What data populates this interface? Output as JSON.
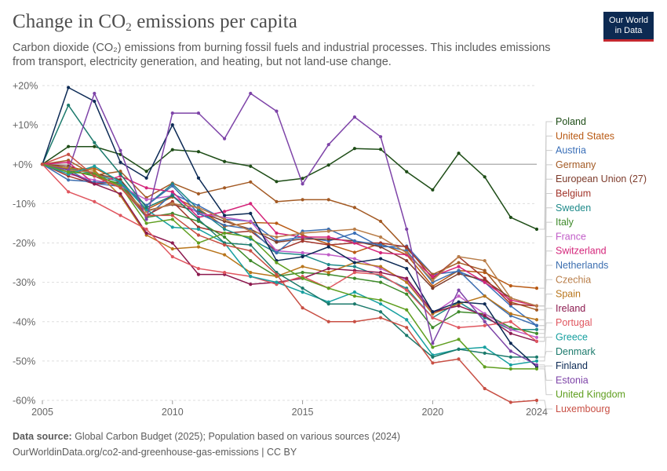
{
  "header": {
    "title_main": "Change in CO",
    "title_sub": "2",
    "title_tail": " emissions per capita",
    "subtitle": "Carbon dioxide (CO₂) emissions from burning fossil fuels and industrial processes. This includes emissions from transport, electricity generation, and heating, but not land-use change."
  },
  "logo": {
    "line1": "Our World",
    "line2": "in Data",
    "bg_color": "#0d2a52",
    "accent_color": "#c4282f"
  },
  "footer": {
    "source_label": "Data source:",
    "source_text": " Global Carbon Budget (2025); Population based on various sources (2024)",
    "url_text": "OurWorldinData.org/co2-and-greenhouse-gas-emissions | CC BY"
  },
  "chart_data": {
    "type": "line",
    "title": "Change in CO₂ emissions per capita",
    "xlabel": "",
    "ylabel": "",
    "xlim": [
      2005,
      2024
    ],
    "ylim": [
      -60,
      20
    ],
    "yticks": [
      20,
      10,
      0,
      -10,
      -20,
      -30,
      -40,
      -50,
      -60
    ],
    "ytick_labels": [
      "+20%",
      "+10%",
      "+0%",
      "-10%",
      "-20%",
      "-30%",
      "-40%",
      "-50%",
      "-60%"
    ],
    "xticks": [
      2005,
      2010,
      2015,
      2020,
      2024
    ],
    "xtick_labels": [
      "2005",
      "2010",
      "2015",
      "2020",
      "2024"
    ],
    "grid": true,
    "legend": "right",
    "x": [
      2005,
      2006,
      2007,
      2008,
      2009,
      2010,
      2011,
      2012,
      2013,
      2014,
      2015,
      2016,
      2017,
      2018,
      2019,
      2020,
      2021,
      2022,
      2023,
      2024
    ],
    "series": [
      {
        "name": "Poland",
        "color": "#1e4d17",
        "values": [
          0,
          4.5,
          4.5,
          2.5,
          -1.8,
          3.7,
          3.2,
          0.7,
          -0.5,
          -4.4,
          -3.6,
          -0.2,
          4.0,
          3.8,
          -1.9,
          -6.5,
          2.8,
          -3.2,
          -13.5,
          -16.5
        ]
      },
      {
        "name": "United States",
        "color": "#b95a14",
        "values": [
          0,
          -1.3,
          -1.0,
          -4.3,
          -11.5,
          -8.3,
          -11.3,
          -15.8,
          -14.8,
          -15.0,
          -18.0,
          -20.3,
          -22.4,
          -20.1,
          -23.0,
          -31.0,
          -27.0,
          -27.5,
          -30.9,
          -31.5
        ]
      },
      {
        "name": "Austria",
        "color": "#3a6fb8",
        "values": [
          0,
          -1.5,
          -4.9,
          -5.6,
          -13.5,
          -7.5,
          -10.5,
          -14.0,
          -14.5,
          -19.5,
          -18.5,
          -19.5,
          -17.5,
          -21.0,
          -20.8,
          -28.0,
          -27.2,
          -30.0,
          -36.0,
          -41.0
        ]
      },
      {
        "name": "Germany",
        "color": "#a35a24",
        "values": [
          0,
          1.0,
          -2.8,
          -1.8,
          -8.5,
          -4.8,
          -7.5,
          -6.0,
          -4.5,
          -9.5,
          -9.0,
          -9.0,
          -11.0,
          -14.5,
          -21.5,
          -28.0,
          -25.0,
          -27.0,
          -35.0,
          -37.0
        ]
      },
      {
        "name": "European Union (27)",
        "color": "#7d3b2b",
        "values": [
          0,
          -0.5,
          -2.3,
          -3.9,
          -11.8,
          -10.2,
          -12.0,
          -14.5,
          -16.5,
          -19.8,
          -19.0,
          -19.0,
          -19.5,
          -21.0,
          -24.5,
          -31.5,
          -27.8,
          -29.5,
          -34.0,
          -36.0
        ]
      },
      {
        "name": "Belgium",
        "color": "#a2352b",
        "values": [
          0,
          -3.0,
          -5.0,
          -4.5,
          -13.0,
          -9.5,
          -16.0,
          -17.5,
          -17.0,
          -22.0,
          -19.5,
          -20.5,
          -20.0,
          -20.0,
          -21.0,
          -29.0,
          -23.5,
          -29.0,
          -35.5,
          -36.0
        ]
      },
      {
        "name": "Sweden",
        "color": "#1e8a8a",
        "values": [
          0,
          -1.0,
          -2.5,
          -4.5,
          -10.5,
          -5.0,
          -11.5,
          -16.5,
          -19.0,
          -22.5,
          -23.0,
          -25.5,
          -26.0,
          -28.5,
          -31.5,
          -39.0,
          -35.0,
          -39.0,
          -42.0,
          -42.0
        ]
      },
      {
        "name": "Italy",
        "color": "#3e8a2a",
        "values": [
          0,
          -1.5,
          -3.0,
          -5.0,
          -13.5,
          -12.5,
          -14.5,
          -18.5,
          -24.5,
          -28.5,
          -27.5,
          -28.0,
          -29.0,
          -30.0,
          -33.0,
          -41.5,
          -37.5,
          -38.0,
          -41.5,
          -43.0
        ]
      },
      {
        "name": "France",
        "color": "#c15dc8",
        "values": [
          0,
          -2.5,
          -4.0,
          -5.5,
          -9.0,
          -8.0,
          -12.5,
          -13.5,
          -14.5,
          -22.0,
          -22.5,
          -23.0,
          -24.0,
          -26.5,
          -29.5,
          -38.0,
          -33.5,
          -38.0,
          -42.0,
          -44.0
        ]
      },
      {
        "name": "Switzerland",
        "color": "#d4257a",
        "values": [
          0,
          0.5,
          -5.0,
          -3.0,
          -6.0,
          -7.0,
          -13.5,
          -12.0,
          -10.0,
          -17.5,
          -18.5,
          -18.5,
          -20.0,
          -22.5,
          -23.0,
          -28.5,
          -26.0,
          -30.0,
          -34.5,
          -36.0
        ]
      },
      {
        "name": "Netherlands",
        "color": "#3d6fb0",
        "values": [
          0,
          -4.0,
          -4.5,
          -5.0,
          -10.5,
          -5.5,
          -12.5,
          -15.5,
          -16.5,
          -22.5,
          -17.0,
          -16.5,
          -19.5,
          -20.5,
          -22.0,
          -30.0,
          -27.0,
          -33.5,
          -38.5,
          -41.0
        ]
      },
      {
        "name": "Czechia",
        "color": "#b97e49",
        "values": [
          0,
          -1.5,
          -2.0,
          -6.0,
          -12.0,
          -10.0,
          -11.0,
          -14.0,
          -17.0,
          -18.5,
          -17.5,
          -17.0,
          -16.5,
          -18.5,
          -22.5,
          -29.5,
          -23.5,
          -24.5,
          -34.0,
          -36.0
        ]
      },
      {
        "name": "Spain",
        "color": "#b8751b",
        "values": [
          0,
          -1.0,
          -1.5,
          -8.0,
          -18.0,
          -21.5,
          -21.0,
          -23.0,
          -27.5,
          -28.5,
          -26.0,
          -27.5,
          -25.0,
          -26.0,
          -30.0,
          -38.0,
          -35.5,
          -33.5,
          -38.0,
          -39.5
        ]
      },
      {
        "name": "Ireland",
        "color": "#8c1a4f",
        "values": [
          0,
          -2.0,
          -5.0,
          -7.5,
          -17.5,
          -20.0,
          -28.0,
          -28.0,
          -30.5,
          -30.0,
          -29.0,
          -26.5,
          -27.0,
          -27.5,
          -29.0,
          -37.5,
          -36.0,
          -38.5,
          -43.0,
          -45.0
        ]
      },
      {
        "name": "Portugal",
        "color": "#e0565f",
        "values": [
          0,
          -7.0,
          -9.5,
          -13.0,
          -16.5,
          -23.5,
          -26.5,
          -27.5,
          -28.5,
          -30.5,
          -28.5,
          -31.5,
          -27.5,
          -28.0,
          -32.0,
          -39.0,
          -41.5,
          -41.0,
          -40.0,
          -45.0
        ]
      },
      {
        "name": "Greece",
        "color": "#18a0a0",
        "values": [
          0,
          -2.5,
          -0.5,
          -4.5,
          -11.5,
          -16.0,
          -16.5,
          -20.0,
          -28.5,
          -30.0,
          -32.5,
          -35.0,
          -32.5,
          -35.5,
          -39.5,
          -48.5,
          -47.0,
          -46.5,
          -51.0,
          -50.0
        ]
      },
      {
        "name": "Denmark",
        "color": "#1c7a6c",
        "values": [
          0,
          15.0,
          5.5,
          -2.5,
          -11.0,
          -8.0,
          -14.0,
          -20.0,
          -20.5,
          -27.5,
          -31.5,
          -35.5,
          -35.5,
          -37.5,
          -43.5,
          -49.0,
          -47.0,
          -48.0,
          -49.0,
          -49.0
        ]
      },
      {
        "name": "Finland",
        "color": "#0c2a55",
        "values": [
          0,
          19.5,
          16.0,
          0.5,
          -3.5,
          10.0,
          -3.5,
          -13.0,
          -12.5,
          -24.5,
          -23.5,
          -21.0,
          -25.0,
          -24.0,
          -26.5,
          -37.5,
          -35.0,
          -35.5,
          -45.5,
          -51.5
        ]
      },
      {
        "name": "Estonia",
        "color": "#7e44a8",
        "values": [
          0,
          -1.5,
          18.0,
          3.5,
          -14.0,
          13.0,
          13.0,
          6.5,
          18.0,
          13.5,
          -5.0,
          5.0,
          12.0,
          7.0,
          -16.5,
          -45.5,
          -32.0,
          -40.0,
          -47.5,
          -51.0
        ]
      },
      {
        "name": "United Kingdom",
        "color": "#5f9e1f",
        "values": [
          0,
          -2.0,
          -2.5,
          -5.5,
          -15.0,
          -14.0,
          -20.0,
          -17.5,
          -18.5,
          -25.0,
          -29.0,
          -31.5,
          -33.5,
          -34.5,
          -37.0,
          -46.5,
          -44.5,
          -51.5,
          -52.0,
          -52.0
        ]
      },
      {
        "name": "Luxembourg",
        "color": "#c84f44",
        "values": [
          0,
          2.5,
          -3.0,
          -6.0,
          -13.0,
          -13.0,
          -18.0,
          -20.5,
          -22.0,
          -28.0,
          -36.5,
          -40.0,
          -40.0,
          -39.0,
          -41.5,
          -50.5,
          -49.5,
          -57.0,
          -60.5,
          -60.0
        ]
      }
    ]
  }
}
